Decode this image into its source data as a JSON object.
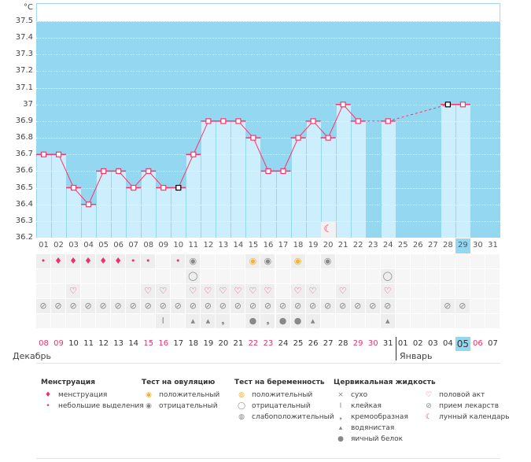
{
  "chart_data": {
    "type": "line",
    "ylabel": "°C",
    "ylim": [
      36.2,
      37.6
    ],
    "yticks": [
      "37.5",
      "37.4",
      "37.3",
      "37.2",
      "37.1",
      "37",
      "36.9",
      "36.8",
      "36.7",
      "36.6",
      "36.5",
      "36.4",
      "36.3",
      "36.2"
    ],
    "cycle_days": [
      "01",
      "02",
      "03",
      "04",
      "05",
      "06",
      "07",
      "08",
      "09",
      "10",
      "11",
      "12",
      "13",
      "14",
      "15",
      "16",
      "17",
      "18",
      "19",
      "20",
      "21",
      "22",
      "23",
      "24",
      "25",
      "26",
      "27",
      "28",
      "29",
      "30",
      "31"
    ],
    "temps": [
      36.7,
      36.7,
      36.5,
      36.4,
      36.6,
      36.6,
      36.5,
      36.6,
      36.5,
      36.5,
      36.7,
      36.9,
      36.9,
      36.9,
      36.8,
      36.6,
      36.6,
      36.8,
      36.9,
      36.8,
      37.0,
      36.9,
      null,
      36.9,
      null,
      null,
      null,
      37.0,
      37.0,
      null,
      null
    ],
    "coverline_day": 10,
    "today_day": 29,
    "moon_day": 20
  },
  "rows": {
    "menstruation": {
      "1": "light",
      "2": "heavy",
      "3": "heavy",
      "4": "heavy",
      "5": "heavy",
      "6": "heavy",
      "7": "light",
      "8": "light",
      "10": "light"
    },
    "ovulation": {
      "11": "negative",
      "15": "positive",
      "16": "negative",
      "18": "positive",
      "20": "negative"
    },
    "pregnancy": {
      "11": "negative",
      "24": "negative"
    },
    "intercourse": [
      3,
      8,
      9,
      11,
      12,
      13,
      14,
      15,
      16,
      18,
      19,
      21,
      24
    ],
    "medication": [
      1,
      2,
      3,
      4,
      5,
      6,
      7,
      8,
      9,
      10,
      11,
      12,
      13,
      14,
      15,
      16,
      17,
      18,
      19,
      20,
      21,
      22,
      23,
      24,
      28,
      29
    ],
    "fluid": {
      "9": "sticky",
      "11": "watery",
      "12": "watery",
      "13": "creamy",
      "15": "egg",
      "16": "creamy",
      "17": "egg",
      "18": "egg",
      "19": "watery",
      "24": "watery"
    }
  },
  "dates": [
    "08",
    "09",
    "10",
    "11",
    "12",
    "13",
    "14",
    "15",
    "16",
    "17",
    "18",
    "19",
    "20",
    "21",
    "22",
    "23",
    "24",
    "25",
    "26",
    "27",
    "28",
    "29",
    "30",
    "31",
    "01",
    "02",
    "03",
    "04",
    "05",
    "06",
    "07"
  ],
  "red_dates": [
    0,
    1,
    7,
    8,
    14,
    15,
    21,
    22,
    29
  ],
  "month1": "Декабрь",
  "month2": "Январь",
  "legend": {
    "menses": {
      "title": "Менструация",
      "a": "менструация",
      "b": "небольшие выделения"
    },
    "ovul": {
      "title": "Тест на овуляцию",
      "a": "положительный",
      "b": "отрицательный"
    },
    "preg": {
      "title": "Тест на беременность",
      "a": "положительный",
      "b": "отрицательный",
      "c": "слабоположительный"
    },
    "fluid": {
      "title": "Цервикальная жидкость",
      "a": "сухо",
      "b": "клейкая",
      "c": "кремообразная",
      "d": "водянистая",
      "e": "яичный белок"
    },
    "other": {
      "a": "половой акт",
      "b": "прием лекарств",
      "c": "лунный календарь"
    }
  },
  "colors": {
    "line": "#ff3366",
    "plot_bg": "#93d7f1",
    "bar": "#cdeefc"
  }
}
